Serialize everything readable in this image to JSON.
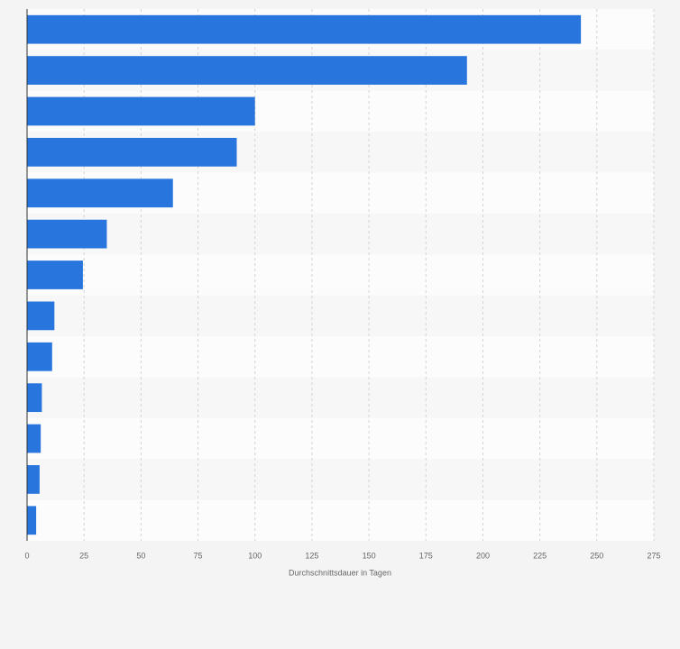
{
  "chart_data": {
    "type": "hbar",
    "x_label": "Durchschnittsdauer in Tagen",
    "categories": [
      null,
      null,
      null,
      null,
      null,
      null,
      null,
      null,
      null,
      null,
      null,
      null,
      null
    ],
    "values": [
      243,
      193,
      100,
      92,
      64,
      35,
      24.5,
      12,
      11,
      6.5,
      6,
      5.5,
      4
    ],
    "color": "#2876dd",
    "xlim": [
      0,
      275
    ],
    "xticks": [
      0,
      25,
      50,
      75,
      100,
      125,
      150,
      175,
      200,
      225,
      250,
      275
    ],
    "grid": true
  }
}
